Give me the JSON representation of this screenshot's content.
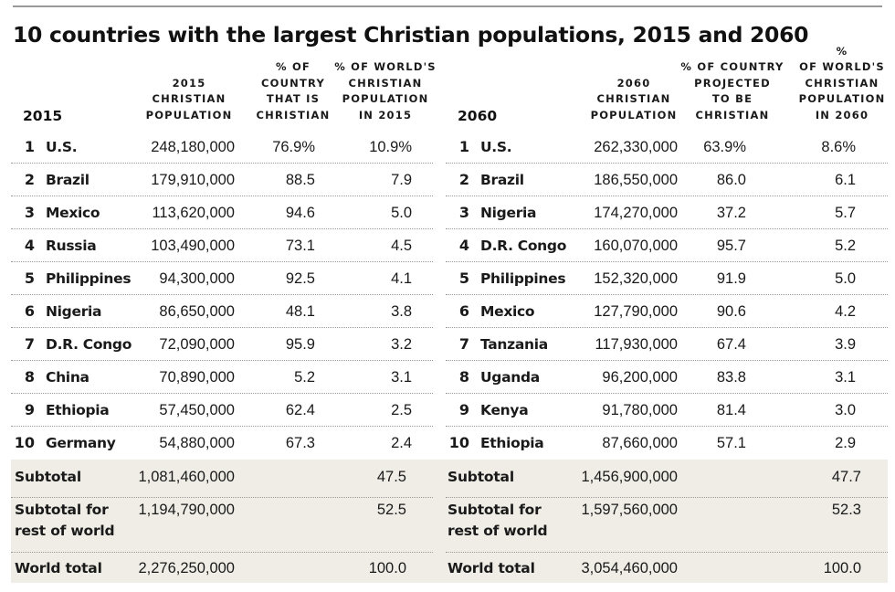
{
  "chart_data": {
    "type": "table",
    "title": "10 countries with the largest Christian populations, 2015 and 2060",
    "tables": [
      {
        "year_label": "2015",
        "columns": [
          "2015\nCHRISTIAN\nPOPULATION",
          "% OF\nCOUNTRY\nTHAT IS\nCHRISTIAN",
          "% OF WORLD'S\nCHRISTIAN\nPOPULATION\nIN 2015"
        ],
        "rows": [
          {
            "rank": "1",
            "country": "U.S.",
            "population": "248,180,000",
            "pct_country": "76.9%",
            "pct_world": "10.9%"
          },
          {
            "rank": "2",
            "country": "Brazil",
            "population": "179,910,000",
            "pct_country": "88.5",
            "pct_world": "7.9"
          },
          {
            "rank": "3",
            "country": "Mexico",
            "population": "113,620,000",
            "pct_country": "94.6",
            "pct_world": "5.0"
          },
          {
            "rank": "4",
            "country": "Russia",
            "population": "103,490,000",
            "pct_country": "73.1",
            "pct_world": "4.5"
          },
          {
            "rank": "5",
            "country": "Philippines",
            "population": "94,300,000",
            "pct_country": "92.5",
            "pct_world": "4.1"
          },
          {
            "rank": "6",
            "country": "Nigeria",
            "population": "86,650,000",
            "pct_country": "48.1",
            "pct_world": "3.8"
          },
          {
            "rank": "7",
            "country": "D.R. Congo",
            "population": "72,090,000",
            "pct_country": "95.9",
            "pct_world": "3.2"
          },
          {
            "rank": "8",
            "country": "China",
            "population": "70,890,000",
            "pct_country": "5.2",
            "pct_world": "3.1"
          },
          {
            "rank": "9",
            "country": "Ethiopia",
            "population": "57,450,000",
            "pct_country": "62.4",
            "pct_world": "2.5"
          },
          {
            "rank": "10",
            "country": "Germany",
            "population": "54,880,000",
            "pct_country": "67.3",
            "pct_world": "2.4"
          }
        ],
        "summary": [
          {
            "label": "Subtotal",
            "population": "1,081,460,000",
            "pct_world": "47.5"
          },
          {
            "label": "Subtotal for\nrest of world",
            "population": "1,194,790,000",
            "pct_world": "52.5"
          },
          {
            "label": "World total",
            "population": "2,276,250,000",
            "pct_world": "100.0"
          }
        ]
      },
      {
        "year_label": "2060",
        "columns": [
          "2060\nCHRISTIAN\nPOPULATION",
          "% OF COUNTRY\nPROJECTED\nTO BE\nCHRISTIAN",
          "%\nOF WORLD'S\nCHRISTIAN\nPOPULATION\nIN 2060"
        ],
        "rows": [
          {
            "rank": "1",
            "country": "U.S.",
            "population": "262,330,000",
            "pct_country": "63.9%",
            "pct_world": "8.6%"
          },
          {
            "rank": "2",
            "country": "Brazil",
            "population": "186,550,000",
            "pct_country": "86.0",
            "pct_world": "6.1"
          },
          {
            "rank": "3",
            "country": "Nigeria",
            "population": "174,270,000",
            "pct_country": "37.2",
            "pct_world": "5.7"
          },
          {
            "rank": "4",
            "country": "D.R. Congo",
            "population": "160,070,000",
            "pct_country": "95.7",
            "pct_world": "5.2"
          },
          {
            "rank": "5",
            "country": "Philippines",
            "population": "152,320,000",
            "pct_country": "91.9",
            "pct_world": "5.0"
          },
          {
            "rank": "6",
            "country": "Mexico",
            "population": "127,790,000",
            "pct_country": "90.6",
            "pct_world": "4.2"
          },
          {
            "rank": "7",
            "country": "Tanzania",
            "population": "117,930,000",
            "pct_country": "67.4",
            "pct_world": "3.9"
          },
          {
            "rank": "8",
            "country": "Uganda",
            "population": "96,200,000",
            "pct_country": "83.8",
            "pct_world": "3.1"
          },
          {
            "rank": "9",
            "country": "Kenya",
            "population": "91,780,000",
            "pct_country": "81.4",
            "pct_world": "3.0"
          },
          {
            "rank": "10",
            "country": "Ethiopia",
            "population": "87,660,000",
            "pct_country": "57.1",
            "pct_world": "2.9"
          }
        ],
        "summary": [
          {
            "label": "Subtotal",
            "population": "1,456,900,000",
            "pct_world": "47.7"
          },
          {
            "label": "Subtotal for\nrest of world",
            "population": "1,597,560,000",
            "pct_world": "52.3"
          },
          {
            "label": "World total",
            "population": "3,054,460,000",
            "pct_world": "100.0"
          }
        ]
      }
    ]
  },
  "colors": {
    "summary_band": "#efede6",
    "rule": "#9a9a9a",
    "text": "#1a1a1a"
  }
}
